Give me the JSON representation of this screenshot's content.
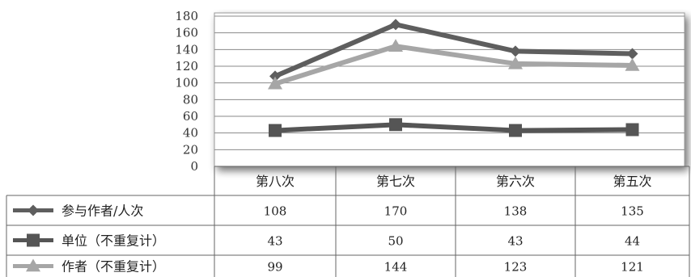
{
  "chart_data": {
    "type": "line",
    "categories": [
      "第八次",
      "第七次",
      "第六次",
      "第五次"
    ],
    "series": [
      {
        "name": "参与作者/人次",
        "values": [
          108,
          170,
          138,
          135
        ],
        "color": "#5e5e5e",
        "marker": "diamond"
      },
      {
        "name": "单位（不重复计）",
        "values": [
          43,
          50,
          43,
          44
        ],
        "color": "#555555",
        "marker": "square"
      },
      {
        "name": "作者（不重复计）",
        "values": [
          99,
          144,
          123,
          121
        ],
        "color": "#a6a6a6",
        "marker": "triangle"
      }
    ],
    "y_ticks": [
      "0",
      "20",
      "40",
      "60",
      "80",
      "100",
      "120",
      "140",
      "160",
      "180"
    ],
    "ylim": [
      0,
      180
    ],
    "grid": true,
    "legend_placement": "data-table-left",
    "table": {
      "rows": [
        {
          "label": "参与作者/人次",
          "cells": [
            "108",
            "170",
            "138",
            "135"
          ]
        },
        {
          "label": "单位（不重复计）",
          "cells": [
            "43",
            "50",
            "43",
            "44"
          ]
        },
        {
          "label": "作者（不重复计）",
          "cells": [
            "99",
            "144",
            "123",
            "121"
          ]
        }
      ]
    }
  }
}
